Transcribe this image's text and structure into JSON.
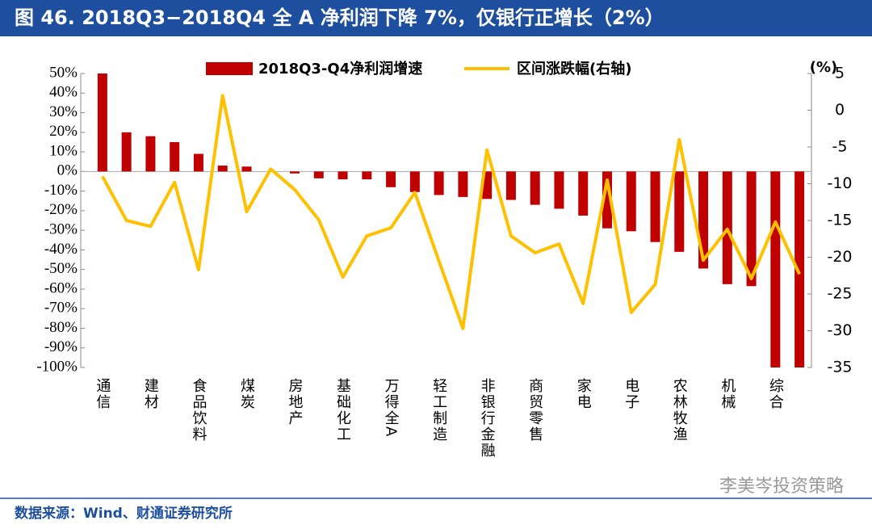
{
  "chart_data": {
    "type": "bar",
    "title": "图 46. 2018Q3−2018Q4 全 A 净利润下降 7%，仅银行正增长（2%）",
    "y2label": "(%)",
    "categories": [
      "通信",
      null,
      "建材",
      null,
      "食品饮料",
      null,
      "煤炭",
      null,
      "房地产",
      null,
      "基础化工",
      null,
      "万得全A",
      null,
      "轻工制造",
      null,
      "非银行金融",
      null,
      "商贸零售",
      null,
      "家电",
      null,
      "电子",
      null,
      "农林牧渔",
      null,
      "机械",
      null,
      "综合",
      null
    ],
    "series": [
      {
        "name": "2018Q3-Q4净利润增速",
        "type": "bar",
        "color": "#c00000",
        "values": [
          50,
          20,
          18,
          15,
          9,
          3,
          2.5,
          0,
          -1,
          -3.5,
          -4,
          -4,
          -8,
          -10.5,
          -12,
          -13,
          -14,
          -14.5,
          -17,
          -19,
          -22.5,
          -29,
          -30.5,
          -36,
          -41,
          -49.5,
          -57.5,
          -58.5,
          -100,
          -100
        ]
      },
      {
        "name": "区间涨跌幅(右轴)",
        "type": "line",
        "axis": "y2",
        "color": "#ffc000",
        "values": [
          -9,
          -15,
          -15.8,
          -9.8,
          -21.7,
          2,
          -13.8,
          -8,
          -10.8,
          -14.9,
          -22.7,
          -17.1,
          -16,
          -11.2,
          -20.5,
          -29.7,
          -5.4,
          -17.1,
          -19.4,
          -18.2,
          -26.3,
          -9.5,
          -27.5,
          -23.7,
          -4,
          -20.4,
          -16.2,
          -22.9,
          -15.2,
          -22.3
        ]
      }
    ],
    "ylim": [
      -100,
      50
    ],
    "yticks": [
      {
        "value": 50,
        "label": "50%"
      },
      {
        "value": 40,
        "label": "40%"
      },
      {
        "value": 30,
        "label": "30%"
      },
      {
        "value": 20,
        "label": "20%"
      },
      {
        "value": 10,
        "label": "10%"
      },
      {
        "value": 0,
        "label": "0%"
      },
      {
        "value": -10,
        "label": "-10%"
      },
      {
        "value": -20,
        "label": "-20%"
      },
      {
        "value": -30,
        "label": "-30%"
      },
      {
        "value": -40,
        "label": "-40%"
      },
      {
        "value": -50,
        "label": "-50%"
      },
      {
        "value": -60,
        "label": "-60%"
      },
      {
        "value": -70,
        "label": "-70%"
      },
      {
        "value": -80,
        "label": "-80%"
      },
      {
        "value": -90,
        "label": "-90%"
      },
      {
        "value": -100,
        "label": "-100%"
      }
    ],
    "y2lim": [
      -35,
      5
    ],
    "y2ticks": [
      5,
      0,
      -5,
      -10,
      -15,
      -20,
      -25,
      -30,
      -35
    ],
    "legend": "top"
  },
  "footer": {
    "source": "数据来源：Wind、财通证券研究所",
    "watermark": "李美岑投资策略"
  }
}
